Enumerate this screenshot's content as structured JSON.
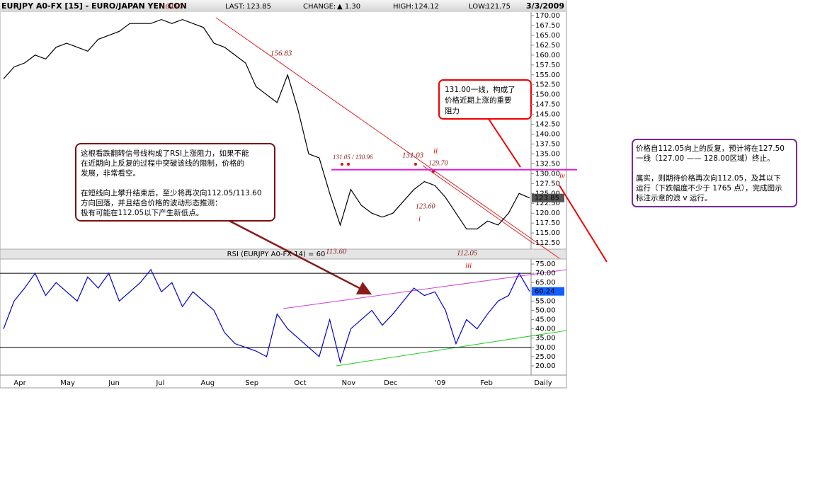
{
  "header": {
    "title": "EURJPY A0-FX [15] - EURO/JAPAN YEN CON",
    "last_label": "LAST:",
    "last": "123.85",
    "change_label": "CHANGE:",
    "change": "▲ 1.30",
    "high_label": "HIGH:",
    "high": "124.12",
    "low_label": "LOW:",
    "low": "121.75",
    "date": "3/3/2009"
  },
  "chart_data": [
    {
      "type": "line",
      "color": "#000000",
      "xlim": [
        0,
        50
      ],
      "ylim": [
        110.9,
        170.9
      ],
      "values": [
        154,
        157,
        158,
        160,
        159,
        162,
        163,
        162,
        161,
        164,
        165,
        166,
        168,
        168,
        168,
        169,
        168,
        169,
        168,
        167,
        163,
        162,
        160,
        158,
        152,
        150,
        148,
        155,
        146,
        135,
        134,
        125,
        117,
        126,
        122,
        120,
        119,
        120,
        123,
        126,
        128,
        127,
        124,
        120,
        116,
        116,
        118,
        117,
        120,
        125,
        123.85
      ],
      "yticks": [
        {
          "value": 112.5,
          "label": "112.50"
        },
        {
          "value": 115,
          "label": "115.00"
        },
        {
          "value": 117.5,
          "label": "117.50"
        },
        {
          "value": 120,
          "label": "120.00"
        },
        {
          "value": 122.5,
          "label": "122.50"
        },
        {
          "value": 125,
          "label": "125.00"
        },
        {
          "value": 127.5,
          "label": "127.50"
        },
        {
          "value": 130,
          "label": "130.00"
        },
        {
          "value": 132.5,
          "label": "132.50"
        },
        {
          "value": 135,
          "label": "135.00"
        },
        {
          "value": 137.5,
          "label": "137.50"
        },
        {
          "value": 140,
          "label": "140.00"
        },
        {
          "value": 142.5,
          "label": "142.50"
        },
        {
          "value": 145,
          "label": "145.00"
        },
        {
          "value": 147.5,
          "label": "147.50"
        },
        {
          "value": 150,
          "label": "150.00"
        },
        {
          "value": 152.5,
          "label": "152.50"
        },
        {
          "value": 155,
          "label": "155.00"
        },
        {
          "value": 157.5,
          "label": "157.50"
        },
        {
          "value": 160,
          "label": "160.00"
        },
        {
          "value": 162.5,
          "label": "162.50"
        },
        {
          "value": 165,
          "label": "165.00"
        },
        {
          "value": 167.5,
          "label": "167.50"
        },
        {
          "value": 170,
          "label": "170.00"
        }
      ],
      "resistance": 131,
      "annotations": [
        "169.97",
        "156.83",
        "131.05 / 130.96",
        "131.03",
        "ii",
        "129.70",
        "iv",
        "123.60",
        "i",
        "113.60",
        "112.05",
        "iii"
      ]
    },
    {
      "type": "line",
      "title": "RSI (EURJPY A0-FX 14) = 60",
      "color": "#0000cc",
      "xlim": [
        0,
        50
      ],
      "ylim": [
        15,
        77.7
      ],
      "values": [
        40,
        55,
        62,
        70,
        58,
        65,
        60,
        55,
        68,
        62,
        70,
        55,
        60,
        65,
        72,
        60,
        65,
        52,
        60,
        55,
        50,
        38,
        32,
        30,
        28,
        25,
        48,
        40,
        35,
        30,
        25,
        45,
        22,
        40,
        45,
        50,
        42,
        48,
        55,
        62,
        58,
        60,
        50,
        32,
        45,
        40,
        48,
        55,
        58,
        70,
        60.24
      ],
      "levels": [
        30,
        70
      ],
      "yticks": [
        {
          "value": 20,
          "label": "20.00"
        },
        {
          "value": 25,
          "label": "25.00"
        },
        {
          "value": 30,
          "label": "30.00"
        },
        {
          "value": 35,
          "label": "35.00"
        },
        {
          "value": 40,
          "label": "40.00"
        },
        {
          "value": 45,
          "label": "45.00"
        },
        {
          "value": 50,
          "label": "50.00"
        },
        {
          "value": 55,
          "label": "55.00"
        },
        {
          "value": 60,
          "label": "60.00"
        },
        {
          "value": 65,
          "label": "65.00"
        },
        {
          "value": 70,
          "label": "70.00"
        },
        {
          "value": 75,
          "label": "75.00"
        }
      ],
      "xticks": [
        {
          "value": 1.55,
          "label": "Apr"
        },
        {
          "value": 6.1,
          "label": "May"
        },
        {
          "value": 10.5,
          "label": "Jun"
        },
        {
          "value": 14.9,
          "label": "Jul"
        },
        {
          "value": 19.4,
          "label": "Aug"
        },
        {
          "value": 23.6,
          "label": "Sep"
        },
        {
          "value": 28.2,
          "label": "Oct"
        },
        {
          "value": 32.8,
          "label": "Nov"
        },
        {
          "value": 36.8,
          "label": "Dec"
        },
        {
          "value": 41.5,
          "label": "'09"
        },
        {
          "value": 45.9,
          "label": "Feb"
        }
      ],
      "x_unit_label": "Daily"
    }
  ],
  "notes": [
    [
      "131.00一线，构成了",
      "价格近期上涨的重要",
      "阻力"
    ],
    [
      "这根看跌翻转信号线构成了RSI上涨阻力，如果不能",
      "在近期向上反复的过程中突破该线的限制，价格的",
      "发展，非常看空。",
      "在短线向上攀升结束后，至少将再次向112.05/113.60",
      "方向回落，并且结合价格的波动形态推测：",
      "极有可能在112.05以下产生新低点。"
    ],
    [
      "价格自112.05向上的反复，预计将在127.50",
      "一线（127.00 —— 128.00区域）终止。",
      "属实，则期待价格再次向112.05，及其以下",
      "运行（下跌幅度不少于 1765 点），完成图示",
      "标注示意的浪 v 运行。"
    ]
  ]
}
